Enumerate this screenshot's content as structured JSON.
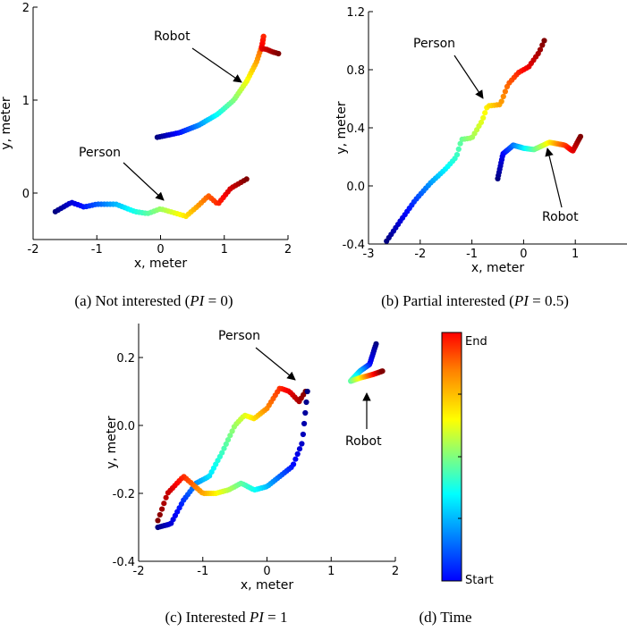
{
  "captions": {
    "a": {
      "pre": "(a) Not interested (",
      "pi": "PI",
      "post": " = 0)"
    },
    "b": {
      "pre": "(b) Partial interested (",
      "pi": "PI",
      "post": " = 0.5)"
    },
    "c": {
      "pre": "(c) Interested ",
      "pi": "PI",
      "post": " = 1"
    },
    "d": {
      "text": "(d) Time"
    }
  },
  "colorbar": {
    "top_label": "End",
    "bottom_label": "Start",
    "colormap": "jet"
  },
  "chart_data": [
    {
      "id": "a",
      "type": "scatter",
      "xlabel": "x, meter",
      "ylabel": "y, meter",
      "xlim": [
        -2,
        2
      ],
      "ylim": [
        -0.5,
        2
      ],
      "xticks": [
        -2,
        -1,
        0,
        1,
        2
      ],
      "yticks": [
        0,
        1,
        2
      ],
      "color_encoding": "time (jet, blue=start, red=end)",
      "annotations": [
        {
          "text": "Robot",
          "series": "robot"
        },
        {
          "text": "Person",
          "series": "person"
        }
      ],
      "series": [
        {
          "key": "robot",
          "x": [
            -0.05,
            0.3,
            0.6,
            0.9,
            1.15,
            1.35,
            1.5,
            1.6,
            1.62,
            1.58,
            1.65,
            1.75,
            1.85
          ],
          "y": [
            0.6,
            0.65,
            0.73,
            0.85,
            1.0,
            1.2,
            1.4,
            1.6,
            1.7,
            1.55,
            1.55,
            1.52,
            1.5
          ]
        },
        {
          "key": "person",
          "x": [
            -1.65,
            -1.4,
            -1.2,
            -1.0,
            -0.7,
            -0.4,
            -0.2,
            0.0,
            0.15,
            0.4,
            0.6,
            0.75,
            0.9,
            1.1,
            1.35
          ],
          "y": [
            -0.2,
            -0.1,
            -0.15,
            -0.12,
            -0.12,
            -0.2,
            -0.22,
            -0.17,
            -0.2,
            -0.25,
            -0.13,
            -0.03,
            -0.12,
            0.05,
            0.15
          ]
        }
      ]
    },
    {
      "id": "b",
      "type": "scatter",
      "xlabel": "x, meter",
      "ylabel": "y, meter",
      "xlim": [
        -3,
        2
      ],
      "ylim": [
        -0.4,
        1.2
      ],
      "xticks": [
        -3,
        -2,
        -1,
        0,
        1
      ],
      "yticks": [
        -0.4,
        0.0,
        0.4,
        0.8,
        1.2
      ],
      "color_encoding": "time (jet, blue=start, red=end)",
      "annotations": [
        {
          "text": "Person",
          "series": "person"
        },
        {
          "text": "Robot",
          "series": "robot"
        }
      ],
      "series": [
        {
          "key": "person",
          "x": [
            -2.65,
            -2.4,
            -2.1,
            -1.8,
            -1.5,
            -1.3,
            -1.2,
            -1.0,
            -0.8,
            -0.7,
            -0.45,
            -0.3,
            -0.1,
            0.1,
            0.3,
            0.4
          ],
          "y": [
            -0.38,
            -0.25,
            -0.1,
            0.02,
            0.12,
            0.2,
            0.32,
            0.33,
            0.45,
            0.55,
            0.56,
            0.7,
            0.78,
            0.82,
            0.92,
            1.0
          ]
        },
        {
          "key": "robot",
          "x": [
            -0.5,
            -0.4,
            -0.2,
            0.0,
            0.2,
            0.5,
            0.8,
            0.95,
            1.1
          ],
          "y": [
            0.05,
            0.22,
            0.28,
            0.26,
            0.25,
            0.3,
            0.28,
            0.24,
            0.34
          ]
        }
      ]
    },
    {
      "id": "c",
      "type": "scatter",
      "xlabel": "x, meter",
      "ylabel": "y, meter",
      "xlim": [
        -2,
        2
      ],
      "ylim": [
        -0.4,
        0.3
      ],
      "xticks": [
        -2,
        -1,
        0,
        1,
        2
      ],
      "yticks": [
        -0.4,
        -0.2,
        0.0,
        0.2
      ],
      "color_encoding": "time (jet, blue=start, red=end)",
      "annotations": [
        {
          "text": "Person",
          "series": "person"
        },
        {
          "text": "Robot",
          "series": "robot"
        }
      ],
      "series": [
        {
          "key": "person",
          "x": [
            -1.7,
            -1.5,
            -1.3,
            -1.1,
            -0.9,
            -0.7,
            -0.5,
            -0.35,
            -0.2,
            0.0,
            0.2,
            0.35,
            0.5,
            0.6
          ],
          "y": [
            -0.3,
            -0.29,
            -0.22,
            -0.17,
            -0.15,
            -0.08,
            0.0,
            0.03,
            0.02,
            0.05,
            0.11,
            0.1,
            0.07,
            0.1
          ]
        },
        {
          "key": "person_return",
          "x": [
            0.63,
            0.55,
            0.4,
            0.2,
            0.0,
            -0.2,
            -0.4,
            -0.6,
            -0.8,
            -1.0,
            -1.3,
            -1.55,
            -1.7
          ],
          "y": [
            0.1,
            -0.05,
            -0.12,
            -0.15,
            -0.18,
            -0.19,
            -0.17,
            -0.19,
            -0.2,
            -0.2,
            -0.15,
            -0.2,
            -0.28
          ]
        },
        {
          "key": "robot",
          "x": [
            1.7,
            1.6,
            1.45,
            1.3,
            1.45,
            1.65,
            1.8
          ],
          "y": [
            0.24,
            0.18,
            0.16,
            0.13,
            0.14,
            0.15,
            0.16
          ]
        }
      ]
    }
  ]
}
